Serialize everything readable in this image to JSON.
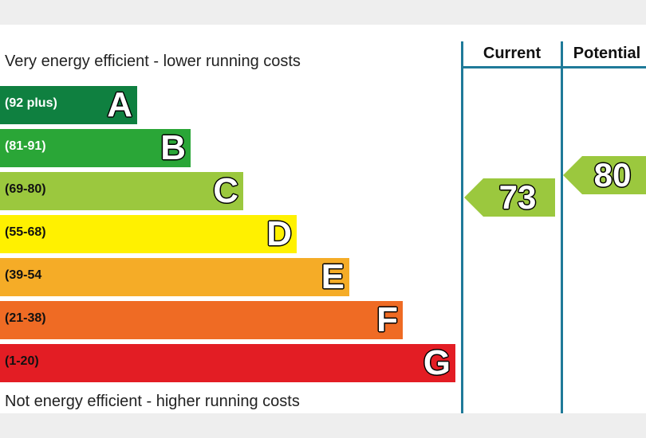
{
  "chart_data": {
    "type": "bar",
    "top_caption": "Very energy efficient - lower running costs",
    "bottom_caption": "Not energy efficient - higher running costs",
    "bands": [
      {
        "letter": "A",
        "range": "(92 plus)",
        "color": "#0f8040",
        "dark_text": false
      },
      {
        "letter": "B",
        "range": "(81-91)",
        "color": "#2aa637",
        "dark_text": false
      },
      {
        "letter": "C",
        "range": "(69-80)",
        "color": "#9bc83e",
        "dark_text": true
      },
      {
        "letter": "D",
        "range": "(55-68)",
        "color": "#fff100",
        "dark_text": true
      },
      {
        "letter": "E",
        "range": "(39-54",
        "color": "#f5ac27",
        "dark_text": true
      },
      {
        "letter": "F",
        "range": "(21-38)",
        "color": "#ef6b24",
        "dark_text": true
      },
      {
        "letter": "G",
        "range": "(1-20)",
        "color": "#e31d24",
        "dark_text": true
      }
    ],
    "columns": [
      {
        "name": "Current",
        "value": "73",
        "band": "C",
        "color": "#9bc83e"
      },
      {
        "name": "Potential",
        "value": "80",
        "band": "C",
        "color": "#9bc83e"
      }
    ],
    "frame_color": "#1f7a99"
  }
}
